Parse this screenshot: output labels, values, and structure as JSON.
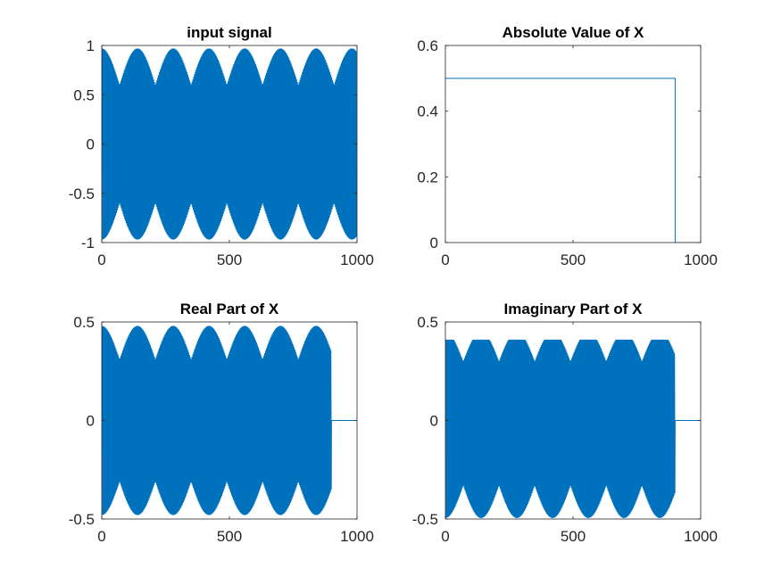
{
  "figure": {
    "background": "#ffffff",
    "line_color": "#0072bd",
    "axis_color": "#262626"
  },
  "chart_data": [
    {
      "type": "line",
      "title": "input signal",
      "xlabel": "",
      "ylabel": "",
      "xlim": [
        0,
        1000
      ],
      "ylim": [
        -1,
        1
      ],
      "xticks": [
        0,
        500,
        1000
      ],
      "xtick_labels": [
        "0",
        "500",
        "1000"
      ],
      "yticks": [
        -1,
        -0.5,
        0,
        0.5,
        1
      ],
      "ytick_labels": [
        "-1",
        "-0.5",
        "0",
        "0.5",
        "1"
      ],
      "grid": false,
      "series": [
        {
          "style": "dense-oscillation",
          "x_range": [
            0,
            1000
          ],
          "amplitude_outer": 0.97,
          "amplitude_inner": 0.6,
          "beat_period": 140,
          "start_value": 0,
          "tail_end": 1000,
          "tail_value": null
        }
      ]
    },
    {
      "type": "line",
      "title": "Absolute Value of X",
      "xlabel": "",
      "ylabel": "",
      "xlim": [
        0,
        1000
      ],
      "ylim": [
        0,
        0.6
      ],
      "xticks": [
        0,
        500,
        1000
      ],
      "xtick_labels": [
        "0",
        "500",
        "1000"
      ],
      "yticks": [
        0,
        0.2,
        0.4,
        0.6
      ],
      "ytick_labels": [
        "0",
        "0.2",
        "0.4",
        "0.6"
      ],
      "grid": false,
      "series": [
        {
          "style": "step",
          "x": [
            0,
            900,
            900,
            1000
          ],
          "y": [
            0.5,
            0.5,
            0,
            0
          ]
        }
      ]
    },
    {
      "type": "line",
      "title": "Real Part of X",
      "xlabel": "",
      "ylabel": "",
      "xlim": [
        0,
        1000
      ],
      "ylim": [
        -0.5,
        0.5
      ],
      "xticks": [
        0,
        500,
        1000
      ],
      "xtick_labels": [
        "0",
        "500",
        "1000"
      ],
      "yticks": [
        -0.5,
        0,
        0.5
      ],
      "ytick_labels": [
        "-0.5",
        "0",
        "0.5"
      ],
      "grid": false,
      "series": [
        {
          "style": "dense-oscillation",
          "x_range": [
            0,
            900
          ],
          "amplitude_outer": 0.48,
          "amplitude_inner": 0.31,
          "beat_period": 140,
          "start_value": 0,
          "tail_end": 1000,
          "tail_value": 0
        }
      ]
    },
    {
      "type": "line",
      "title": "Imaginary Part of X",
      "xlabel": "",
      "ylabel": "",
      "xlim": [
        0,
        1000
      ],
      "ylim": [
        -0.5,
        0.5
      ],
      "xticks": [
        0,
        500,
        1000
      ],
      "xtick_labels": [
        "0",
        "500",
        "1000"
      ],
      "yticks": [
        -0.5,
        0,
        0.5
      ],
      "ytick_labels": [
        "-0.5",
        "0",
        "0.5"
      ],
      "grid": false,
      "series": [
        {
          "style": "dense-oscillation",
          "x_range": [
            0,
            900
          ],
          "amplitude_outer": 0.45,
          "amplitude_inner": 0.3,
          "amplitude_upper": 0.41,
          "amplitude_lower": -0.5,
          "beat_period": 140,
          "start_value": 0,
          "tail_end": 1000,
          "tail_value": 0
        }
      ]
    }
  ]
}
